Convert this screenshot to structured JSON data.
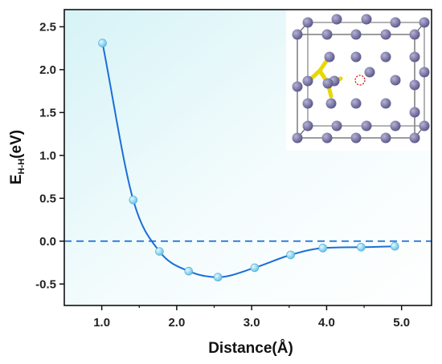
{
  "chart_data": {
    "type": "line",
    "xlabel": "Distance(Å)",
    "ylabel": {
      "main": "E",
      "sub": "H-H",
      "rest": "(eV)"
    },
    "xlim": [
      0.5,
      5.4
    ],
    "ylim": [
      -0.75,
      2.7
    ],
    "x_ticks": [
      "1.0",
      "2.0",
      "3.0",
      "4.0",
      "5.0"
    ],
    "y_ticks": [
      "-0.5",
      "0.0",
      "0.5",
      "1.0",
      "1.5",
      "2.0",
      "2.5"
    ],
    "series": [
      {
        "x": [
          1.01,
          1.42,
          1.77,
          2.16,
          2.55,
          3.04,
          3.52,
          3.95,
          4.46,
          4.91
        ],
        "y": [
          2.31,
          0.48,
          -0.12,
          -0.35,
          -0.42,
          -0.31,
          -0.16,
          -0.08,
          -0.07,
          -0.06
        ]
      }
    ],
    "reference_line": {
      "y": 0.0,
      "style": "dashed"
    },
    "grid": false,
    "background": "gradient",
    "inset": "crystal structure image (top-right)",
    "colors": {
      "line": "#1a6fd6",
      "marker": "#7fd0f0",
      "reference": "#1a6fd6",
      "atom": "#7a76a6",
      "highlight": "#f0e000",
      "vacancy": "#e02020"
    }
  }
}
